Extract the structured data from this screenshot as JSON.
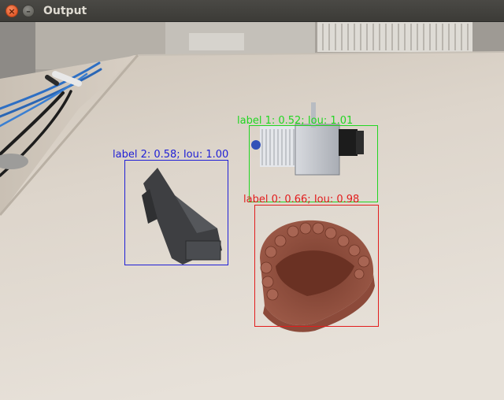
{
  "window": {
    "title": "Output",
    "close_glyph": "×",
    "minimize_glyph": "–"
  },
  "detections": [
    {
      "name": "detection-label-2",
      "label": "label 2: 0.58; Iou: 1.00",
      "color": "#1f1fd6"
    },
    {
      "name": "detection-label-1",
      "label": "label 1: 0.52; Iou: 1.01",
      "color": "#22d622"
    },
    {
      "name": "detection-label-0",
      "label": "label 0: 0.66; Iou: 0.98",
      "color": "#e21d1d"
    }
  ]
}
